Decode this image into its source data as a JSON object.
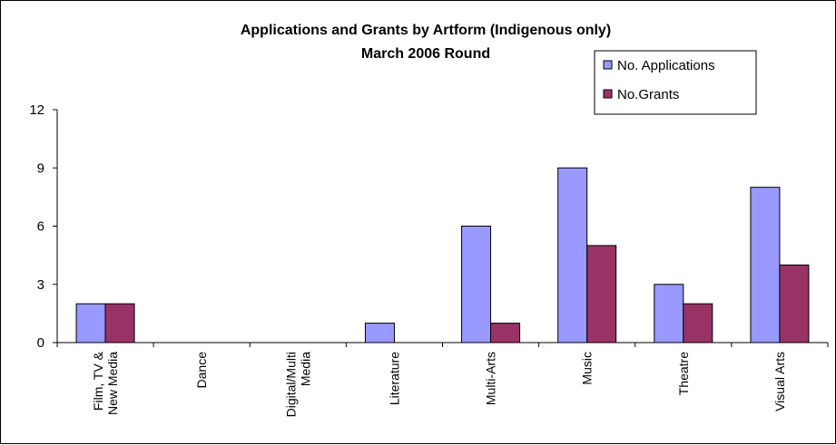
{
  "chart_data": {
    "type": "bar",
    "title": "Applications and Grants by Artform (Indigenous only)",
    "subtitle": "March 2006 Round",
    "xlabel": "",
    "ylabel": "",
    "ylim": [
      0,
      12
    ],
    "yticks": [
      "0",
      "3",
      "6",
      "9",
      "12"
    ],
    "grid": false,
    "legend_position": "top-right",
    "categories": [
      "Film, TV & New Media",
      "Dance",
      "Digital/Multi Media",
      "Literature",
      "Multi-Arts",
      "Music",
      "Theatre",
      "Visual Arts"
    ],
    "series": [
      {
        "name": "No. Applications",
        "color": "#9999ff",
        "values": [
          2,
          0,
          0,
          1,
          6,
          9,
          3,
          8
        ]
      },
      {
        "name": "No.Grants",
        "color": "#993366",
        "values": [
          2,
          0,
          0,
          0,
          1,
          5,
          2,
          4
        ]
      }
    ]
  }
}
